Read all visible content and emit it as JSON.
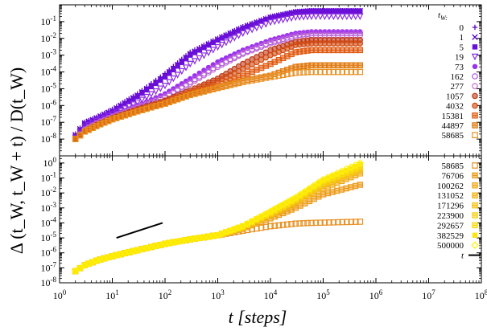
{
  "xlabel": "t [steps]",
  "ylabel": "Δ (t_W, t_W + t) / D(t_W)",
  "legend_title_top": "t_W:",
  "chart_data": [
    {
      "type": "scatter",
      "panel": "top",
      "xscale": "log",
      "yscale": "log",
      "xlim": [
        1,
        100000000
      ],
      "ylim": [
        1e-09,
        1.0
      ],
      "grid": false,
      "legend_position": "right",
      "ytick_labels": [
        "10^-8",
        "10^-7",
        "10^-6",
        "10^-5",
        "10^-4",
        "10^-3",
        "10^-2",
        "10^-1"
      ],
      "series": [
        {
          "name": "0",
          "marker": "plus",
          "color": "#5b00c8",
          "x": [
            2,
            3,
            5,
            10,
            30,
            100,
            300,
            1000,
            3000,
            10000,
            30000,
            60000,
            500000
          ],
          "y": [
            2e-08,
            1e-07,
            2e-07,
            6e-07,
            5e-06,
            8e-05,
            0.0015,
            0.01,
            0.05,
            0.2,
            0.4,
            0.45,
            0.45
          ]
        },
        {
          "name": "1",
          "marker": "cross",
          "color": "#5b00c8",
          "x": [
            2,
            3,
            5,
            10,
            30,
            100,
            300,
            1000,
            3000,
            10000,
            30000,
            60000,
            500000
          ],
          "y": [
            1.8e-08,
            9e-08,
            1.8e-07,
            5e-07,
            4e-06,
            6e-05,
            0.0012,
            0.009,
            0.045,
            0.18,
            0.38,
            0.44,
            0.44
          ]
        },
        {
          "name": "5",
          "marker": "square",
          "color": "#6a0fd8",
          "x": [
            2,
            3,
            5,
            10,
            30,
            100,
            300,
            1000,
            3000,
            10000,
            30000,
            60000,
            500000
          ],
          "y": [
            1.5e-08,
            8e-08,
            1.6e-07,
            4.5e-07,
            3.5e-06,
            5e-05,
            0.001,
            0.008,
            0.04,
            0.17,
            0.36,
            0.43,
            0.43
          ]
        },
        {
          "name": "19",
          "marker": "triangle",
          "color": "#8a2be2",
          "x": [
            2,
            3,
            5,
            10,
            30,
            100,
            300,
            1000,
            3000,
            10000,
            30000,
            60000,
            500000
          ],
          "y": [
            1.2e-08,
            5e-08,
            1.2e-07,
            3e-07,
            1.5e-06,
            1.5e-05,
            0.0003,
            0.003,
            0.02,
            0.09,
            0.18,
            0.2,
            0.2
          ]
        },
        {
          "name": "73",
          "marker": "circle",
          "color": "#9b30f0",
          "x": [
            2,
            3,
            5,
            10,
            30,
            100,
            300,
            1000,
            3000,
            10000,
            30000,
            60000,
            500000
          ],
          "y": [
            1e-08,
            4e-08,
            1e-07,
            2.5e-07,
            1e-06,
            5e-06,
            4e-05,
            0.0004,
            0.002,
            0.008,
            0.02,
            0.025,
            0.025
          ]
        },
        {
          "name": "162",
          "marker": "circle-open",
          "color": "#b050e0",
          "x": [
            2,
            3,
            5,
            10,
            30,
            100,
            300,
            1000,
            3000,
            10000,
            30000,
            60000,
            500000
          ],
          "y": [
            1e-08,
            3.8e-08,
            9e-08,
            2.2e-07,
            8e-07,
            3.5e-06,
            2.5e-05,
            0.00025,
            0.0014,
            0.006,
            0.015,
            0.02,
            0.02
          ]
        },
        {
          "name": "277",
          "marker": "circle-open",
          "color": "#c070d0",
          "x": [
            2,
            3,
            5,
            10,
            30,
            100,
            300,
            1000,
            3000,
            10000,
            30000,
            60000,
            500000
          ],
          "y": [
            1e-08,
            3.5e-08,
            8e-08,
            2e-07,
            7e-07,
            3e-06,
            2e-05,
            0.0002,
            0.0012,
            0.005,
            0.012,
            0.015,
            0.015
          ]
        },
        {
          "name": "1057",
          "marker": "circle-half",
          "color": "#c03a18",
          "x": [
            2,
            3,
            5,
            10,
            30,
            100,
            300,
            1000,
            3000,
            10000,
            30000,
            60000,
            500000
          ],
          "y": [
            1e-08,
            3e-08,
            7e-08,
            1.8e-07,
            6e-07,
            2e-06,
            8e-06,
            4e-05,
            0.0003,
            0.002,
            0.006,
            0.008,
            0.008
          ]
        },
        {
          "name": "4032",
          "marker": "circle-half",
          "color": "#d04a10",
          "x": [
            2,
            3,
            5,
            10,
            30,
            100,
            300,
            1000,
            3000,
            10000,
            30000,
            60000,
            500000
          ],
          "y": [
            1e-08,
            3e-08,
            6.5e-08,
            1.6e-07,
            5e-07,
            1.6e-06,
            6e-06,
            3e-05,
            0.00015,
            0.001,
            0.004,
            0.005,
            0.005
          ]
        },
        {
          "name": "15381",
          "marker": "square-half",
          "color": "#e05a10",
          "x": [
            2,
            3,
            5,
            10,
            30,
            100,
            300,
            1000,
            3000,
            10000,
            30000,
            60000,
            500000
          ],
          "y": [
            1e-08,
            2.8e-08,
            6e-08,
            1.5e-07,
            4.5e-07,
            1.4e-06,
            5e-06,
            1.5e-05,
            6e-05,
            0.0003,
            0.0015,
            0.002,
            0.002
          ]
        },
        {
          "name": "44897",
          "marker": "square-half",
          "color": "#e07a10",
          "x": [
            2,
            3,
            5,
            10,
            30,
            100,
            300,
            1000,
            3000,
            10000,
            30000,
            60000,
            500000
          ],
          "y": [
            1e-08,
            2.8e-08,
            6e-08,
            1.5e-07,
            4.5e-07,
            1.3e-06,
            4.5e-06,
            1.2e-05,
            3e-05,
            6e-05,
            0.0002,
            0.00025,
            0.00025
          ]
        },
        {
          "name": "58685",
          "marker": "square-open",
          "color": "#e89020",
          "x": [
            2,
            3,
            5,
            10,
            30,
            100,
            300,
            1000,
            3000,
            10000,
            30000,
            60000,
            500000
          ],
          "y": [
            1e-08,
            2.8e-08,
            6e-08,
            1.5e-07,
            4.5e-07,
            1.3e-06,
            4.2e-06,
            1.1e-05,
            2.5e-05,
            5e-05,
            9e-05,
            0.0001,
            0.0001
          ]
        }
      ]
    },
    {
      "type": "scatter",
      "panel": "bottom",
      "xscale": "log",
      "yscale": "log",
      "xlim": [
        1,
        100000000
      ],
      "ylim": [
        1e-08,
        3.0
      ],
      "grid": false,
      "legend_position": "right",
      "xtick_labels": [
        "10^0",
        "10^1",
        "10^2",
        "10^3",
        "10^4",
        "10^5",
        "10^6",
        "10^7",
        "10^8"
      ],
      "ytick_labels": [
        "10^-8",
        "10^-7",
        "10^-6",
        "10^-5",
        "10^-4",
        "10^-3",
        "10^-2",
        "10^-1",
        "10^0"
      ],
      "series": [
        {
          "name": "58685",
          "marker": "square-open",
          "color": "#e89020",
          "x": [
            2,
            3,
            5,
            10,
            30,
            100,
            300,
            1000,
            3000,
            10000,
            30000,
            60000,
            500000
          ],
          "y": [
            6e-08,
            1.5e-07,
            3e-07,
            6e-07,
            1.5e-06,
            4e-06,
            8e-06,
            1.5e-05,
            3e-05,
            6e-05,
            9e-05,
            0.0001,
            0.00012
          ]
        },
        {
          "name": "76706",
          "marker": "square-half",
          "color": "#ec9a18",
          "x": [
            2,
            3,
            5,
            10,
            30,
            100,
            300,
            1000,
            3000,
            10000,
            30000,
            100000,
            500000
          ],
          "y": [
            6e-08,
            1.5e-07,
            3e-07,
            6e-07,
            1.5e-06,
            4e-06,
            8e-06,
            1.5e-05,
            4e-05,
            0.0002,
            0.001,
            0.008,
            0.035
          ]
        },
        {
          "name": "100262",
          "marker": "square-half",
          "color": "#f0a818",
          "x": [
            2,
            3,
            5,
            10,
            30,
            100,
            300,
            1000,
            3000,
            10000,
            30000,
            100000,
            500000
          ],
          "y": [
            6e-08,
            1.5e-07,
            3e-07,
            6e-07,
            1.5e-06,
            4e-06,
            8e-06,
            1.5e-05,
            4.5e-05,
            0.0003,
            0.002,
            0.02,
            0.2
          ]
        },
        {
          "name": "131052",
          "marker": "square-half",
          "color": "#f3b515",
          "x": [
            2,
            3,
            5,
            10,
            30,
            100,
            300,
            1000,
            3000,
            10000,
            30000,
            100000,
            500000
          ],
          "y": [
            6e-08,
            1.5e-07,
            3e-07,
            6e-07,
            1.5e-06,
            4e-06,
            8e-06,
            1.5e-05,
            5e-05,
            0.00035,
            0.0025,
            0.03,
            0.3
          ]
        },
        {
          "name": "171296",
          "marker": "square-half",
          "color": "#f6c210",
          "x": [
            2,
            3,
            5,
            10,
            30,
            100,
            300,
            1000,
            3000,
            10000,
            30000,
            100000,
            500000
          ],
          "y": [
            6e-08,
            1.5e-07,
            3e-07,
            6e-07,
            1.5e-06,
            4e-06,
            8e-06,
            1.5e-05,
            5e-05,
            0.0004,
            0.003,
            0.04,
            0.4
          ]
        },
        {
          "name": "223900",
          "marker": "square-half",
          "color": "#f8cf10",
          "x": [
            2,
            3,
            5,
            10,
            30,
            100,
            300,
            1000,
            3000,
            10000,
            30000,
            100000,
            500000
          ],
          "y": [
            6e-08,
            1.5e-07,
            3e-07,
            6e-07,
            1.5e-06,
            4e-06,
            8e-06,
            1.5e-05,
            5.5e-05,
            0.00045,
            0.0035,
            0.05,
            0.5
          ]
        },
        {
          "name": "292657",
          "marker": "square-half",
          "color": "#fadc10",
          "x": [
            2,
            3,
            5,
            10,
            30,
            100,
            300,
            1000,
            3000,
            10000,
            30000,
            100000,
            500000
          ],
          "y": [
            6e-08,
            1.5e-07,
            3e-07,
            6e-07,
            1.5e-06,
            4e-06,
            8e-06,
            1.5e-05,
            6e-05,
            0.0005,
            0.004,
            0.06,
            0.6
          ]
        },
        {
          "name": "382529",
          "marker": "square",
          "color": "#fce610",
          "x": [
            2,
            3,
            5,
            10,
            30,
            100,
            300,
            1000,
            3000,
            10000,
            30000,
            100000,
            500000
          ],
          "y": [
            6e-08,
            1.5e-07,
            3e-07,
            6e-07,
            1.5e-06,
            4e-06,
            8e-06,
            1.5e-05,
            6e-05,
            0.00055,
            0.0045,
            0.07,
            0.8
          ]
        },
        {
          "name": "500000",
          "marker": "diamond-open",
          "color": "#fff000",
          "x": [
            2,
            3,
            5,
            10,
            30,
            100,
            300,
            1000,
            3000,
            10000,
            30000,
            100000,
            500000
          ],
          "y": [
            6e-08,
            1.5e-07,
            3e-07,
            6e-07,
            1.5e-06,
            4e-06,
            8e-06,
            1.5e-05,
            6e-05,
            0.0006,
            0.005,
            0.08,
            1.0
          ]
        },
        {
          "name": "t",
          "marker": "line",
          "color": "#000000",
          "x": [
            12,
            90
          ],
          "y": [
            1e-05,
            0.0001
          ]
        }
      ]
    }
  ]
}
